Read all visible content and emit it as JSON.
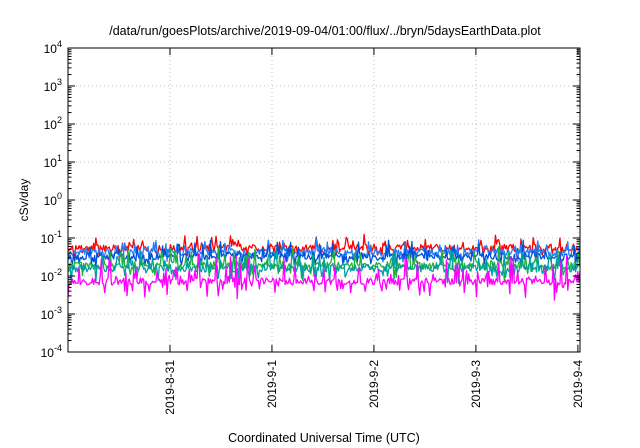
{
  "chart_data": {
    "type": "line",
    "title": "/data/run/goesPlots/archive/2019-09-04/01:00/flux/../bryn/5daysEarthData.plot",
    "xlabel": "Coordinated Universal Time (UTC)",
    "ylabel": "cSv/day",
    "yscale": "log",
    "ylim": [
      0.0001,
      10000
    ],
    "xlim": [
      "2019-08-30T00:00",
      "2019-09-04T00:30"
    ],
    "grid": true,
    "y_ticks": [
      {
        "value": 0.0001,
        "base": "10",
        "exp": "-4"
      },
      {
        "value": 0.001,
        "base": "10",
        "exp": "-3"
      },
      {
        "value": 0.01,
        "base": "10",
        "exp": "-2"
      },
      {
        "value": 0.1,
        "base": "10",
        "exp": "-1"
      },
      {
        "value": 1,
        "base": "10",
        "exp": "0"
      },
      {
        "value": 10,
        "base": "10",
        "exp": "1"
      },
      {
        "value": 100,
        "base": "10",
        "exp": "2"
      },
      {
        "value": 1000,
        "base": "10",
        "exp": "3"
      },
      {
        "value": 10000,
        "base": "10",
        "exp": "4"
      }
    ],
    "x_ticks": [
      {
        "label": "2019-8-31",
        "date": "2019-08-31T00:00"
      },
      {
        "label": "2019-9-1",
        "date": "2019-09-01T00:00"
      },
      {
        "label": "2019-9-2",
        "date": "2019-09-02T00:00"
      },
      {
        "label": "2019-9-3",
        "date": "2019-09-03T00:00"
      },
      {
        "label": "2019-9-4",
        "date": "2019-09-04T00:00"
      }
    ],
    "series": [
      {
        "color": "#ff0000",
        "base": 0.055,
        "amplitude": 0.2,
        "spike": 0.3
      },
      {
        "color": "#1f7fff",
        "base": 0.042,
        "amplitude": 0.2,
        "spike": 0.3
      },
      {
        "color": "#0050d8",
        "base": 0.033,
        "amplitude": 0.18,
        "spike": 0.35
      },
      {
        "color": "#20b040",
        "base": 0.019,
        "amplitude": 0.2,
        "spike": 0.45
      },
      {
        "color": "#00a0a0",
        "base": 0.016,
        "amplitude": 0.2,
        "spike": 0.45
      },
      {
        "color": "#ff00ff",
        "base": 0.0072,
        "amplitude": 0.18,
        "spike": 0.65
      }
    ]
  }
}
